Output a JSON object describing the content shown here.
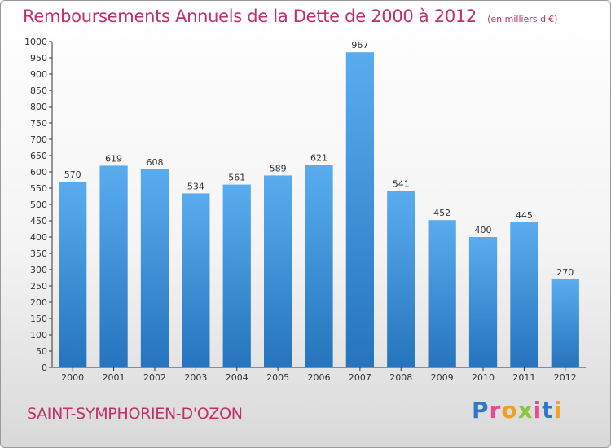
{
  "chart_data": {
    "type": "bar",
    "title": "Remboursements Annuels de la Dette de 2000 à 2012",
    "subtitle": "(en milliers d'€)",
    "categories": [
      "2000",
      "2001",
      "2002",
      "2003",
      "2004",
      "2005",
      "2006",
      "2007",
      "2008",
      "2009",
      "2010",
      "2011",
      "2012"
    ],
    "values": [
      570,
      619,
      608,
      534,
      561,
      589,
      621,
      967,
      541,
      452,
      400,
      445,
      270
    ],
    "ylim": [
      0,
      1000
    ],
    "ytick_step": 50,
    "grid": false,
    "bar_color": "#4a9be0",
    "bar_color_dark": "#2878c4"
  },
  "commune": "SAINT-SYMPHORIEN-D'OZON",
  "logo": {
    "letters": [
      {
        "ch": "P",
        "color": "#2f78c9"
      },
      {
        "ch": "r",
        "color": "#e94c8e"
      },
      {
        "ch": "o",
        "color": "#f2a11b"
      },
      {
        "ch": "x",
        "color": "#8cc63f"
      },
      {
        "ch": "i",
        "color": "#e94c8e"
      },
      {
        "ch": "t",
        "color": "#2f78c9"
      },
      {
        "ch": "i",
        "color": "#f2a11b"
      }
    ]
  },
  "colors": {
    "title": "#c0306a",
    "axis": "#333333",
    "label": "#333333"
  }
}
